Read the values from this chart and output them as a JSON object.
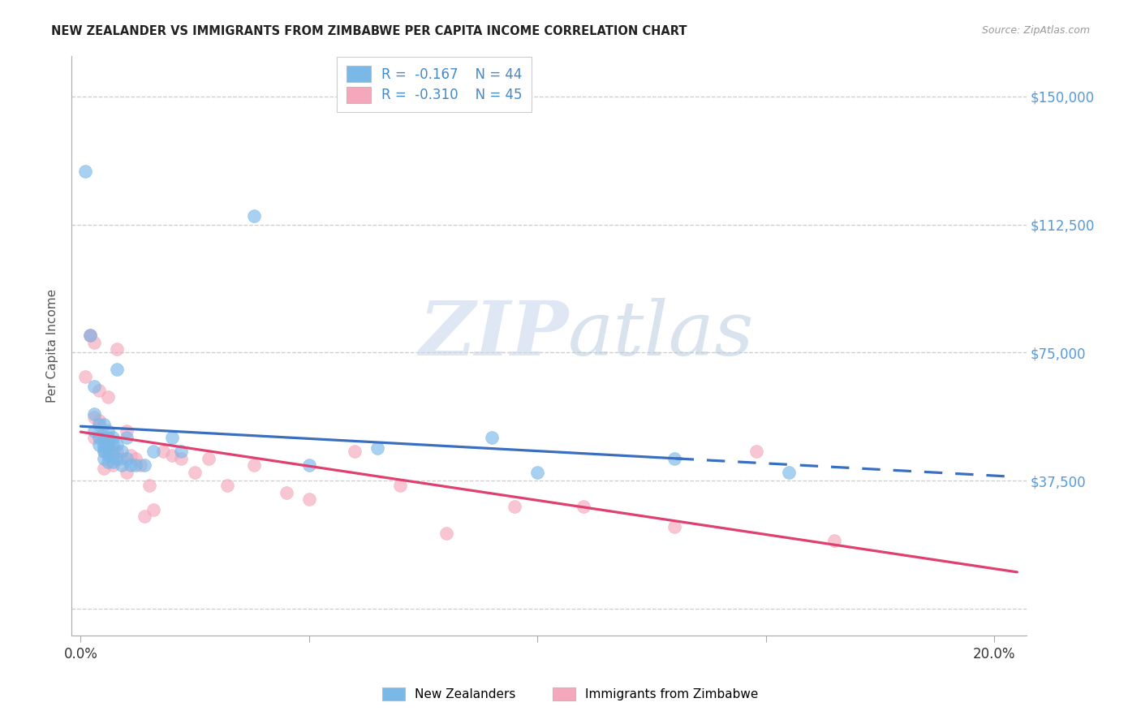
{
  "title": "NEW ZEALANDER VS IMMIGRANTS FROM ZIMBABWE PER CAPITA INCOME CORRELATION CHART",
  "source": "Source: ZipAtlas.com",
  "ylabel_label": "Per Capita Income",
  "yticks": [
    0,
    37500,
    75000,
    112500,
    150000
  ],
  "ytick_labels": [
    "",
    "$37,500",
    "$75,000",
    "$112,500",
    "$150,000"
  ],
  "xlim": [
    -0.002,
    0.207
  ],
  "ylim": [
    -8000,
    162000
  ],
  "legend1_r": "-0.167",
  "legend1_n": "44",
  "legend2_r": "-0.310",
  "legend2_n": "45",
  "legend_label1": "New Zealanders",
  "legend_label2": "Immigrants from Zimbabwe",
  "watermark_zip": "ZIP",
  "watermark_atlas": "atlas",
  "blue_color": "#7ab8e8",
  "pink_color": "#f5a8bc",
  "blue_line_color": "#3a6fc0",
  "pink_line_color": "#e04070",
  "nz_x": [
    0.001,
    0.002,
    0.003,
    0.003,
    0.003,
    0.004,
    0.004,
    0.004,
    0.005,
    0.005,
    0.005,
    0.005,
    0.005,
    0.005,
    0.006,
    0.006,
    0.006,
    0.006,
    0.006,
    0.006,
    0.007,
    0.007,
    0.007,
    0.007,
    0.008,
    0.008,
    0.008,
    0.009,
    0.009,
    0.01,
    0.01,
    0.011,
    0.012,
    0.014,
    0.016,
    0.02,
    0.022,
    0.038,
    0.05,
    0.065,
    0.09,
    0.1,
    0.13,
    0.155
  ],
  "nz_y": [
    128000,
    80000,
    65000,
    57000,
    52000,
    54000,
    50000,
    48000,
    54000,
    50000,
    48000,
    47000,
    46000,
    44000,
    52000,
    50000,
    48000,
    47000,
    45000,
    43000,
    50000,
    48000,
    45000,
    43000,
    70000,
    48000,
    44000,
    46000,
    42000,
    50000,
    44000,
    42000,
    42000,
    42000,
    46000,
    50000,
    46000,
    115000,
    42000,
    47000,
    50000,
    40000,
    44000,
    40000
  ],
  "zim_x": [
    0.001,
    0.002,
    0.002,
    0.003,
    0.003,
    0.003,
    0.004,
    0.004,
    0.004,
    0.005,
    0.005,
    0.005,
    0.006,
    0.006,
    0.006,
    0.007,
    0.007,
    0.008,
    0.008,
    0.009,
    0.01,
    0.01,
    0.011,
    0.012,
    0.013,
    0.014,
    0.015,
    0.016,
    0.018,
    0.02,
    0.022,
    0.025,
    0.028,
    0.032,
    0.038,
    0.045,
    0.05,
    0.06,
    0.07,
    0.08,
    0.095,
    0.11,
    0.13,
    0.148,
    0.165
  ],
  "zim_y": [
    68000,
    80000,
    80000,
    78000,
    56000,
    50000,
    64000,
    55000,
    50000,
    50000,
    46000,
    41000,
    62000,
    49000,
    46000,
    46000,
    42000,
    76000,
    46000,
    44000,
    52000,
    40000,
    45000,
    44000,
    42000,
    27000,
    36000,
    29000,
    46000,
    45000,
    44000,
    40000,
    44000,
    36000,
    42000,
    34000,
    32000,
    46000,
    36000,
    22000,
    30000,
    30000,
    24000,
    46000,
    20000
  ]
}
